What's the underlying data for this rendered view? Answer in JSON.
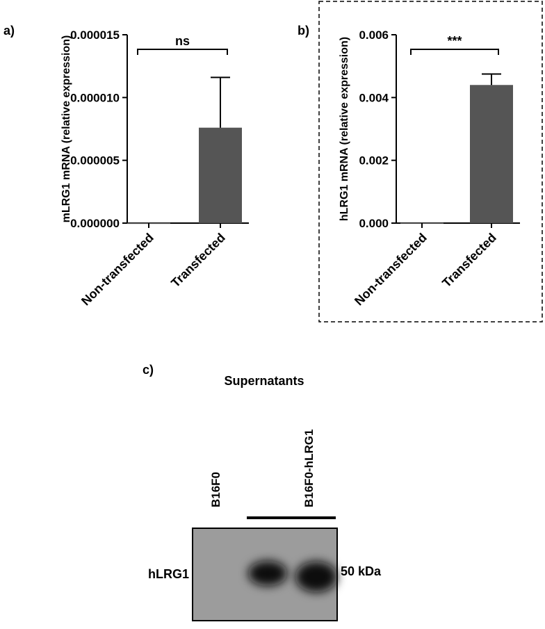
{
  "chart_data": [
    {
      "type": "bar",
      "panel": "a)",
      "y_label": "mLRG1 mRNA (relative expression)",
      "categories": [
        "Non-transfected",
        "Transfected"
      ],
      "values": [
        2e-08,
        7.6e-06
      ],
      "errors": [
        0,
        4e-06
      ],
      "color": "#555555",
      "significance": "ns",
      "ylim": [
        0,
        1.5e-05
      ],
      "yticks": [
        {
          "value": 0,
          "label": "0.000000"
        },
        5e-06,
        {
          "value": 1e-05,
          "label": "0.000010"
        },
        1.5e-05
      ]
    },
    {
      "type": "bar",
      "panel": "b)",
      "y_label": "hLRG1 mRNA (relative expression)",
      "categories": [
        "Non-transfected",
        "Transfected"
      ],
      "values": [
        1e-05,
        0.0044
      ],
      "errors": [
        0,
        0.00035
      ],
      "color": "#555555",
      "significance": "***",
      "ylim": [
        0,
        0.006
      ],
      "yticks": [
        {
          "value": 0,
          "label": "0.000"
        },
        0.002,
        0.004,
        0.006
      ]
    }
  ],
  "blot": {
    "panel": "c)",
    "title": "Supernatants",
    "lanes": [
      "B16F0",
      "B16F0-hLRG1"
    ],
    "band_label": "hLRG1",
    "size_label": "50 kDa"
  }
}
